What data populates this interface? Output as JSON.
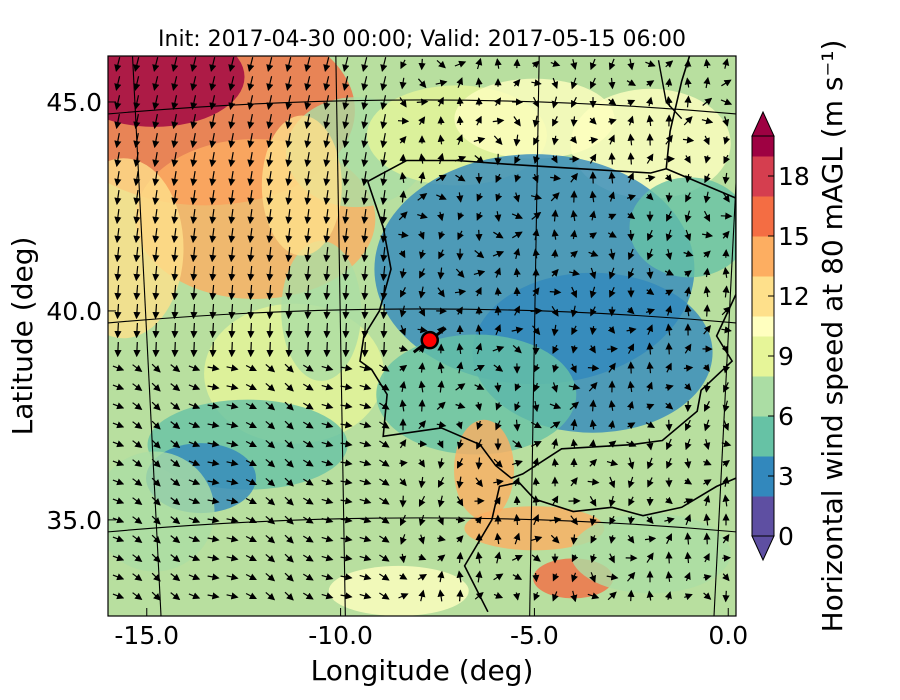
{
  "title": "Init: 2017-04-30 00:00; Valid: 2017-05-15 06:00",
  "x_axis": {
    "label": "Longitude (deg)",
    "ticks": [
      {
        "value": -15.0,
        "label": "-15.0"
      },
      {
        "value": -10.0,
        "label": "-10.0"
      },
      {
        "value": -5.0,
        "label": "-5.0"
      },
      {
        "value": 0.0,
        "label": "0.0"
      }
    ],
    "range": [
      -16.0,
      0.2
    ]
  },
  "y_axis": {
    "label": "Latitude (deg)",
    "ticks": [
      {
        "value": 35.0,
        "label": "35.0"
      },
      {
        "value": 40.0,
        "label": "40.0"
      },
      {
        "value": 45.0,
        "label": "45.0"
      }
    ],
    "range": [
      32.7,
      46.1
    ]
  },
  "colorbar": {
    "label": "Horizontal wind speed at 80 mAGL (m s⁻¹)",
    "range": [
      0,
      20
    ],
    "tick_values": [
      0,
      3,
      6,
      9,
      12,
      15,
      18
    ],
    "tick_labels": [
      "0",
      "3",
      "6",
      "9",
      "12",
      "15",
      "18"
    ],
    "extend": "both",
    "colormap": [
      "#5e4fa2",
      "#3288bd",
      "#66c2a5",
      "#abdda4",
      "#e6f598",
      "#ffffbf",
      "#fee08b",
      "#fdae61",
      "#f46d43",
      "#d53e4f",
      "#9e0142"
    ]
  },
  "marker": {
    "lon": -7.7,
    "lat": 39.3,
    "color": "#ff0000"
  },
  "colors": {
    "frame": "#000000",
    "background": "#ffffff"
  }
}
